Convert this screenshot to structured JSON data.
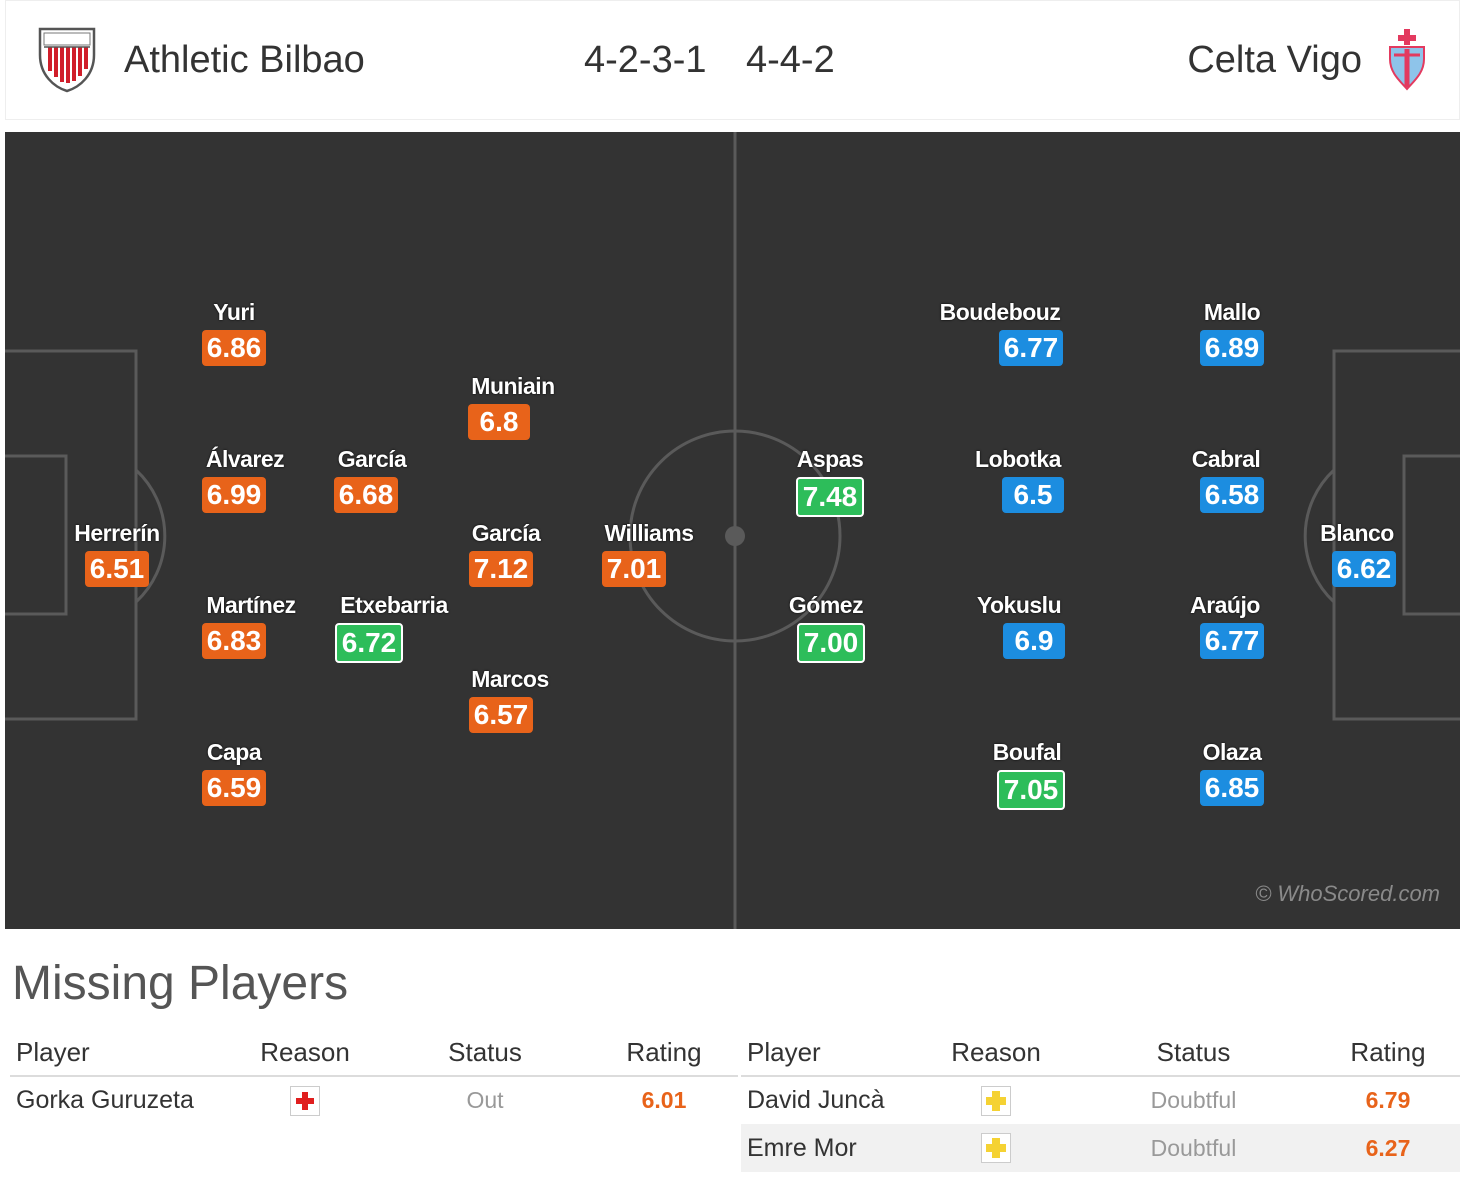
{
  "header": {
    "home_team": "Athletic Bilbao",
    "away_team": "Celta Vigo",
    "home_formation": "4-2-3-1",
    "away_formation": "4-4-2",
    "home_crest_icon": "athletic-bilbao-crest-icon",
    "away_crest_icon": "celta-vigo-crest-icon"
  },
  "pitch": {
    "watermark": "© WhoScored.com",
    "colors": {
      "pitch": "#333333",
      "home_rating": "#e8631a",
      "away_rating": "#1c8de0",
      "top_rating": "#2dbd5a"
    },
    "home_players": [
      {
        "name": "Herrerín",
        "rating": "6.51",
        "highlight": false
      },
      {
        "name": "Yuri",
        "rating": "6.86",
        "highlight": false
      },
      {
        "name": "Álvarez",
        "rating": "6.99",
        "highlight": false
      },
      {
        "name": "Martínez",
        "rating": "6.83",
        "highlight": false
      },
      {
        "name": "Capa",
        "rating": "6.59",
        "highlight": false
      },
      {
        "name": "García",
        "rating": "6.68",
        "highlight": false
      },
      {
        "name": "Etxebarria",
        "rating": "6.72",
        "highlight": true
      },
      {
        "name": "Muniain",
        "rating": "6.8",
        "highlight": false
      },
      {
        "name": "García",
        "rating": "7.12",
        "highlight": false
      },
      {
        "name": "Marcos",
        "rating": "6.57",
        "highlight": false
      },
      {
        "name": "Williams",
        "rating": "7.01",
        "highlight": false
      }
    ],
    "away_players": [
      {
        "name": "Aspas",
        "rating": "7.48",
        "highlight": true
      },
      {
        "name": "Gómez",
        "rating": "7.00",
        "highlight": true
      },
      {
        "name": "Boudebouz",
        "rating": "6.77",
        "highlight": false
      },
      {
        "name": "Lobotka",
        "rating": "6.5",
        "highlight": false
      },
      {
        "name": "Yokuslu",
        "rating": "6.9",
        "highlight": false
      },
      {
        "name": "Boufal",
        "rating": "7.05",
        "highlight": true
      },
      {
        "name": "Mallo",
        "rating": "6.89",
        "highlight": false
      },
      {
        "name": "Cabral",
        "rating": "6.58",
        "highlight": false
      },
      {
        "name": "Araújo",
        "rating": "6.77",
        "highlight": false
      },
      {
        "name": "Olaza",
        "rating": "6.85",
        "highlight": false
      },
      {
        "name": "Blanco",
        "rating": "6.62",
        "highlight": false
      }
    ]
  },
  "missing": {
    "title": "Missing Players",
    "columns": [
      "Player",
      "Reason",
      "Status",
      "Rating"
    ],
    "home": [
      {
        "player": "Gorka Guruzeta",
        "reason_icon": "injury-icon",
        "status": "Out",
        "rating": "6.01"
      }
    ],
    "away": [
      {
        "player": "David Juncà",
        "reason_icon": "doubtful-icon",
        "status": "Doubtful",
        "rating": "6.79"
      },
      {
        "player": "Emre Mor",
        "reason_icon": "doubtful-icon",
        "status": "Doubtful",
        "rating": "6.27"
      }
    ]
  }
}
